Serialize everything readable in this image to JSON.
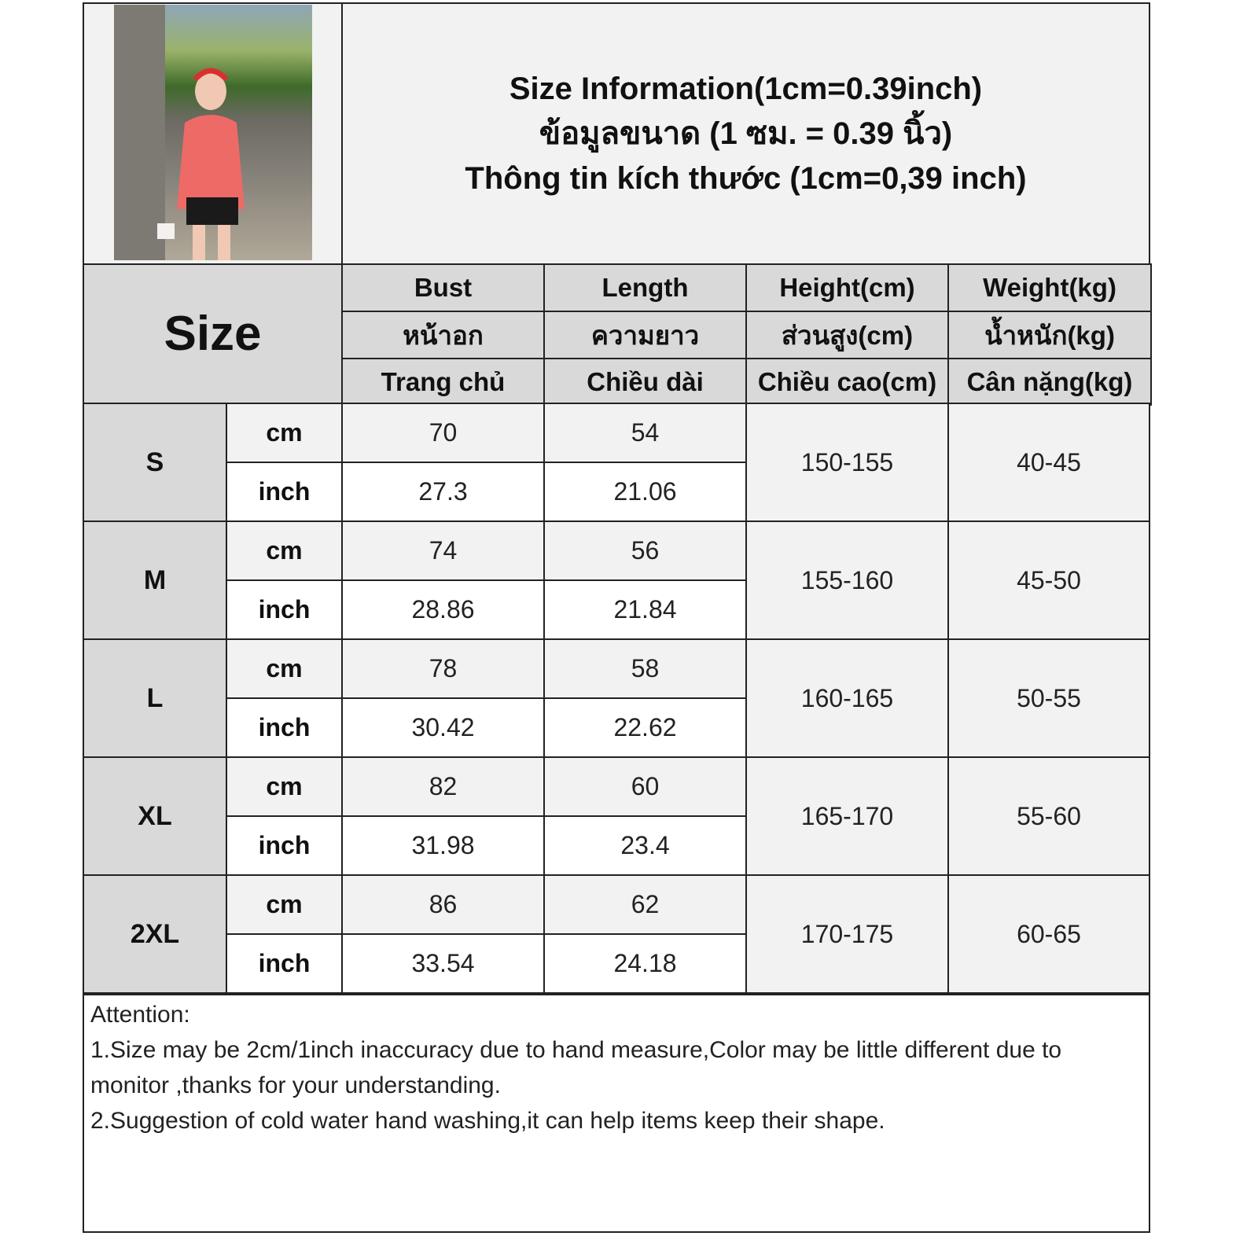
{
  "title": {
    "lines": [
      "Size Information(1cm=0.39inch)",
      "ข้อมูลขนาด (1 ซม. = 0.39 นิ้ว)",
      "Thông tin kích thước (1cm=0,39 inch)"
    ]
  },
  "photo": {
    "icon": "product-photo-woman-red-top"
  },
  "table": {
    "size_header": "Size",
    "columns": [
      {
        "en": "Bust",
        "th": "หน้าอก",
        "vi": "Trang chủ"
      },
      {
        "en": "Length",
        "th": "ความยาว",
        "vi": "Chiều dài"
      },
      {
        "en": "Height(cm)",
        "th": "ส่วนสูง(cm)",
        "vi": "Chiều cao(cm)"
      },
      {
        "en": "Weight(kg)",
        "th": "น้ำหนัก(kg)",
        "vi": "Cân nặng(kg)"
      }
    ],
    "unit_cm": "cm",
    "unit_inch": "inch",
    "rows": [
      {
        "size": "S",
        "bust_cm": "70",
        "length_cm": "54",
        "bust_inch": "27.3",
        "length_inch": "21.06",
        "height": "150-155",
        "weight": "40-45"
      },
      {
        "size": "M",
        "bust_cm": "74",
        "length_cm": "56",
        "bust_inch": "28.86",
        "length_inch": "21.84",
        "height": "155-160",
        "weight": "45-50"
      },
      {
        "size": "L",
        "bust_cm": "78",
        "length_cm": "58",
        "bust_inch": "30.42",
        "length_inch": "22.62",
        "height": "160-165",
        "weight": "50-55"
      },
      {
        "size": "XL",
        "bust_cm": "82",
        "length_cm": "60",
        "bust_inch": "31.98",
        "length_inch": "23.4",
        "height": "165-170",
        "weight": "55-60"
      },
      {
        "size": "2XL",
        "bust_cm": "86",
        "length_cm": "62",
        "bust_inch": "33.54",
        "length_inch": "24.18",
        "height": "170-175",
        "weight": "60-65"
      }
    ]
  },
  "attention": {
    "heading": "Attention:",
    "lines": [
      "1.Size may be 2cm/1inch inaccuracy due to hand measure,Color may be little different due to monitor ,thanks for your understanding.",
      "2.Suggestion of cold water hand washing,it can help items keep their shape."
    ]
  }
}
